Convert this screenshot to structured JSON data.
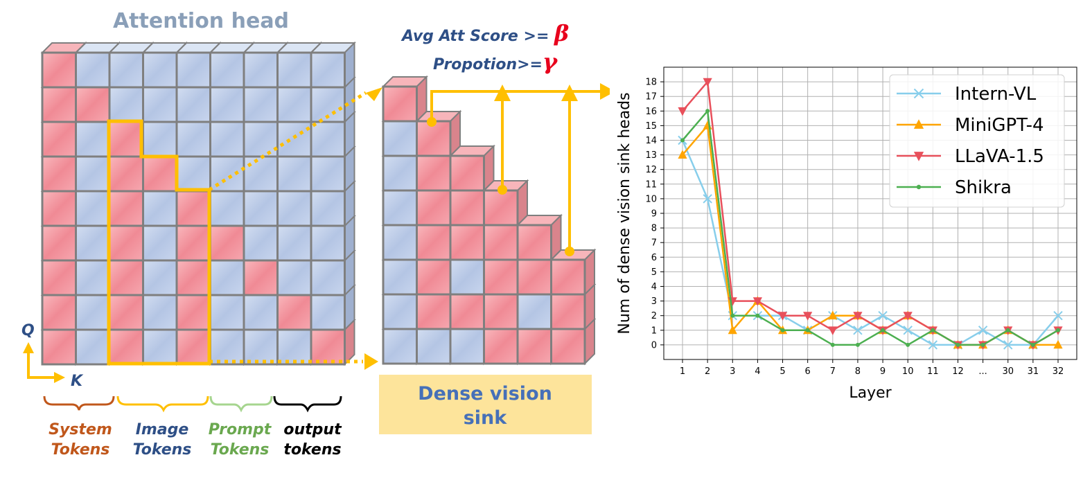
{
  "diagram": {
    "title": "Attention head",
    "cond_avg_prefix": "Avg Att Score >= ",
    "cond_avg_symbol": "β",
    "cond_prop_prefix": "Propotion>=",
    "cond_prop_symbol": "γ",
    "axis_q": "Q",
    "axis_k": "K",
    "dense_label_line1": "Dense vision",
    "dense_label_line2": "sink",
    "token_groups": [
      {
        "line1": "System",
        "line2": "Tokens",
        "color": "#c0571b"
      },
      {
        "line1": "Image",
        "line2": "Tokens",
        "color": "#2e4f86"
      },
      {
        "line1": "Prompt",
        "line2": "Tokens",
        "color": "#6aa84f"
      },
      {
        "line1": "output",
        "line2": "tokens",
        "color": "#000000"
      }
    ],
    "colors": {
      "pink": "#f4a0a8",
      "blue": "#bccbe6",
      "highlight": "#ffbf00",
      "label_bg": "#fde49b"
    }
  },
  "chart_data": {
    "type": "line",
    "xlabel": "Layer",
    "ylabel": "Num of dense vision sink heads",
    "categories": [
      "1",
      "2",
      "3",
      "4",
      "5",
      "6",
      "7",
      "8",
      "9",
      "10",
      "11",
      "12",
      "...",
      "30",
      "31",
      "32"
    ],
    "ylim": [
      -1,
      19
    ],
    "yticks": [
      0,
      1,
      2,
      3,
      4,
      5,
      6,
      7,
      8,
      9,
      10,
      11,
      12,
      13,
      14,
      15,
      16,
      17,
      18
    ],
    "grid": true,
    "legend_position": "top-right",
    "series": [
      {
        "name": "Intern-VL",
        "color": "#87ceeb",
        "marker": "x",
        "values": [
          14,
          10,
          2,
          2,
          2,
          1,
          2,
          1,
          2,
          1,
          0,
          0,
          1,
          0,
          0,
          2
        ]
      },
      {
        "name": "MiniGPT-4",
        "color": "#ffa500",
        "marker": "triangle-up",
        "values": [
          13,
          15,
          1,
          3,
          1,
          1,
          2,
          2,
          1,
          2,
          1,
          0,
          0,
          1,
          0,
          0
        ]
      },
      {
        "name": "LLaVA-1.5",
        "color": "#e8505b",
        "marker": "triangle-down",
        "values": [
          16,
          18,
          3,
          3,
          2,
          2,
          1,
          2,
          1,
          2,
          1,
          0,
          0,
          1,
          0,
          1
        ]
      },
      {
        "name": "Shikra",
        "color": "#4caf50",
        "marker": "dot",
        "values": [
          14,
          16,
          2,
          2,
          1,
          1,
          0,
          0,
          1,
          0,
          1,
          0,
          0,
          1,
          0,
          1
        ]
      }
    ]
  }
}
